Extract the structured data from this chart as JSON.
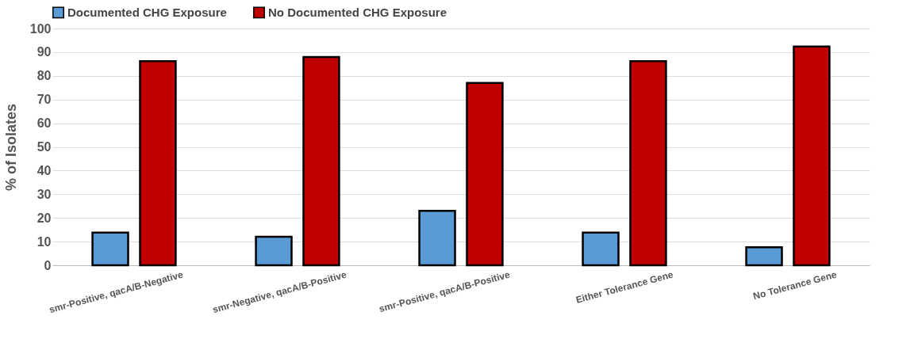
{
  "chart_data": {
    "type": "bar",
    "ylabel": "% of Isolates",
    "categories": [
      "smr-Positive, qacA/B-Negative",
      "smr-Negative, qacA/B-Positive",
      "smr-Positive, qacA/B-Positive",
      "Either Tolerance Gene",
      "No Tolerance Gene"
    ],
    "series": [
      {
        "name": "Documented CHG Exposure",
        "color": "#5b9bd5",
        "values": [
          13.8,
          12,
          23,
          13.8,
          7.6
        ]
      },
      {
        "name": "No Documented CHG Exposure",
        "color": "#c00000",
        "values": [
          86.2,
          88,
          77,
          86.2,
          92.4
        ]
      }
    ],
    "ylim": [
      0,
      100
    ],
    "yticks": [
      0,
      10,
      20,
      30,
      40,
      50,
      60,
      70,
      80,
      90,
      100
    ],
    "grid": "y",
    "legend": "top"
  }
}
